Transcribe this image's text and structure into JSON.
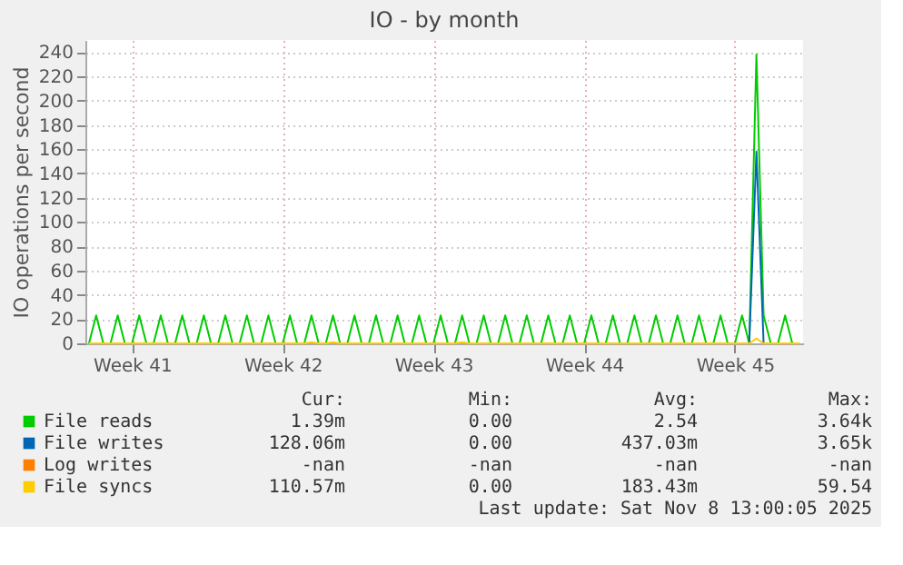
{
  "chart_data": {
    "type": "line",
    "title": "IO - by month",
    "ylabel": "IO operations per second",
    "categories": [
      null,
      null,
      null,
      null,
      null,
      null,
      "Week 41",
      null,
      null,
      null,
      null,
      null,
      null,
      null,
      null,
      null,
      null,
      null,
      null,
      null,
      null,
      null,
      null,
      null,
      null,
      null,
      null,
      "Week 42",
      null,
      null,
      null,
      null,
      null,
      null,
      null,
      null,
      null,
      null,
      null,
      null,
      null,
      null,
      null,
      null,
      null,
      null,
      null,
      null,
      "Week 43",
      null,
      null,
      null,
      null,
      null,
      null,
      null,
      null,
      null,
      null,
      null,
      null,
      null,
      null,
      null,
      null,
      null,
      null,
      null,
      null,
      "Week 44",
      null,
      null,
      null,
      null,
      null,
      null,
      null,
      null,
      null,
      null,
      null,
      null,
      null,
      null,
      null,
      null,
      null,
      null,
      null,
      null,
      "Week 45",
      null,
      null,
      null,
      null,
      null,
      null,
      null,
      null,
      null
    ],
    "ylim": [
      0,
      250
    ],
    "yticks": [
      0,
      20,
      40,
      60,
      80,
      100,
      120,
      140,
      160,
      180,
      200,
      220,
      240
    ],
    "grid": true,
    "legend": "bottom",
    "marker": "none",
    "line_style": "solid",
    "series": [
      {
        "name": "File reads",
        "color": "#00cc00",
        "values": [
          0,
          23,
          0,
          0,
          23,
          0,
          0,
          23,
          0,
          0,
          23,
          0,
          0,
          23,
          0,
          0,
          23,
          0,
          0,
          23,
          0,
          0,
          23,
          0,
          0,
          23,
          0,
          0,
          23,
          0,
          0,
          23,
          0,
          0,
          23,
          0,
          0,
          23,
          0,
          0,
          23,
          0,
          0,
          23,
          0,
          0,
          23,
          0,
          0,
          23,
          0,
          0,
          23,
          0,
          0,
          23,
          0,
          0,
          23,
          0,
          0,
          23,
          0,
          0,
          23,
          0,
          0,
          23,
          0,
          0,
          23,
          0,
          0,
          23,
          0,
          0,
          23,
          0,
          0,
          23,
          0,
          0,
          23,
          0,
          0,
          23,
          0,
          0,
          23,
          0,
          0,
          23,
          0,
          238,
          23,
          0,
          0,
          23,
          0,
          0
        ]
      },
      {
        "name": "File writes",
        "color": "#0066b3",
        "values": [
          null,
          null,
          null,
          null,
          null,
          null,
          null,
          null,
          null,
          null,
          null,
          null,
          null,
          null,
          null,
          null,
          null,
          null,
          null,
          null,
          null,
          null,
          null,
          null,
          null,
          null,
          null,
          null,
          null,
          null,
          null,
          null,
          null,
          null,
          null,
          null,
          null,
          null,
          null,
          null,
          null,
          null,
          null,
          null,
          null,
          null,
          null,
          null,
          null,
          null,
          null,
          null,
          null,
          null,
          null,
          null,
          null,
          null,
          null,
          null,
          null,
          null,
          null,
          null,
          null,
          null,
          null,
          null,
          null,
          null,
          null,
          null,
          null,
          null,
          null,
          null,
          null,
          null,
          null,
          null,
          null,
          null,
          null,
          null,
          null,
          null,
          null,
          null,
          null,
          null,
          null,
          null,
          0,
          158,
          0,
          null,
          null,
          null,
          null,
          null
        ]
      },
      {
        "name": "Log writes",
        "color": "#ff8000",
        "values": [
          null,
          null,
          null,
          null,
          null,
          null,
          null,
          null,
          null,
          null,
          null,
          null,
          null,
          null,
          null,
          null,
          null,
          null,
          null,
          null,
          null,
          null,
          null,
          null,
          null,
          null,
          null,
          null,
          null,
          null,
          null,
          null,
          null,
          null,
          null,
          null,
          null,
          null,
          null,
          null,
          null,
          null,
          null,
          null,
          null,
          null,
          null,
          null,
          null,
          null,
          null,
          null,
          null,
          null,
          null,
          null,
          null,
          null,
          null,
          null,
          null,
          null,
          null,
          null,
          null,
          null,
          null,
          null,
          null,
          null,
          null,
          null,
          null,
          null,
          null,
          null,
          null,
          null,
          null,
          null,
          null,
          null,
          null,
          null,
          null,
          null,
          null,
          null,
          null,
          null,
          null,
          null,
          null,
          null,
          null,
          null,
          null,
          null,
          null,
          null
        ]
      },
      {
        "name": "File syncs",
        "color": "#ffcc00",
        "values": [
          0,
          0,
          0,
          0,
          0,
          0,
          0,
          0,
          0,
          0,
          0,
          0,
          0,
          0,
          0,
          0,
          0,
          0,
          0,
          0,
          0,
          0,
          0,
          0,
          0,
          0,
          0,
          0,
          0,
          0,
          0,
          1,
          0,
          0,
          1,
          0,
          0,
          0,
          0,
          0,
          0,
          0,
          0,
          0,
          0,
          0,
          0,
          0,
          0,
          0,
          0,
          0,
          1,
          0,
          0,
          0,
          0,
          0,
          0,
          0,
          0,
          0,
          0,
          0,
          0,
          0,
          0,
          0,
          0,
          0,
          0,
          0,
          0,
          0,
          0,
          0,
          0,
          0,
          0,
          0,
          0,
          0,
          0,
          0,
          0,
          0,
          0,
          0,
          0,
          0,
          0,
          0,
          0,
          4,
          0,
          0,
          0,
          0,
          0,
          0
        ]
      }
    ],
    "annotations": [
      "Cur:",
      "Min:",
      "Avg:",
      "Max:",
      "1.39m",
      "0.00",
      "2.54",
      "3.64k",
      "128.06m",
      "0.00",
      "437.03m",
      "3.65k",
      "-nan",
      "-nan",
      "-nan",
      "-nan",
      "110.57m",
      "0.00",
      "183.43m",
      "59.54",
      "Last update: Sat Nov  8 13:00:05 2025"
    ]
  }
}
